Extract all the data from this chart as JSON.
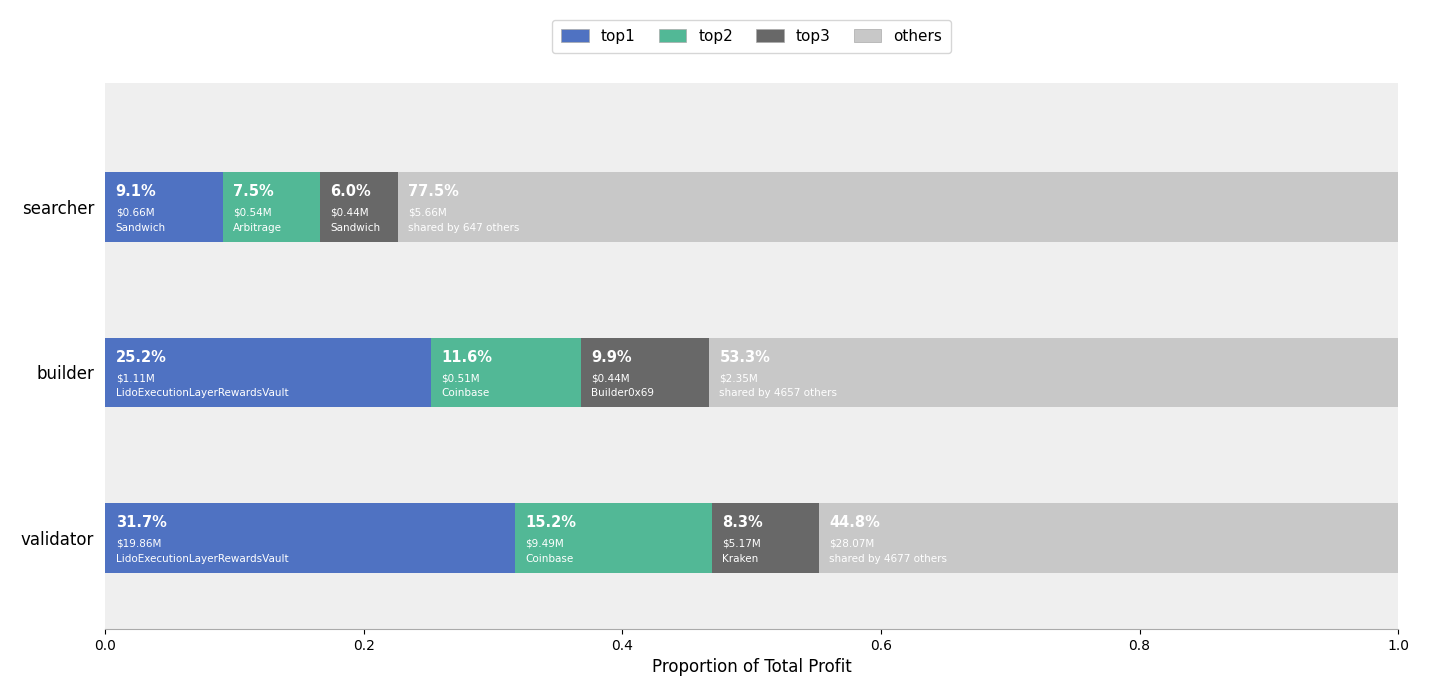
{
  "categories": [
    "searcher",
    "builder",
    "validator"
  ],
  "segments": [
    {
      "row": "searcher",
      "values": [
        0.091,
        0.075,
        0.06,
        0.775
      ],
      "colors": [
        "#4f72c2",
        "#52b896",
        "#686868",
        "#c8c8c8"
      ],
      "labels": [
        "9.1%",
        "7.5%",
        "6.0%",
        "77.5%"
      ],
      "line2": [
        "$0.66M",
        "$0.54M",
        "$0.44M",
        "$5.66M"
      ],
      "line3": [
        "Sandwich",
        "Arbitrage",
        "Sandwich",
        "shared by 647 others"
      ]
    },
    {
      "row": "builder",
      "values": [
        0.252,
        0.116,
        0.099,
        0.533
      ],
      "colors": [
        "#4f72c2",
        "#52b896",
        "#686868",
        "#c8c8c8"
      ],
      "labels": [
        "25.2%",
        "11.6%",
        "9.9%",
        "53.3%"
      ],
      "line2": [
        "$1.11M",
        "$0.51M",
        "$0.44M",
        "$2.35M"
      ],
      "line3": [
        "LidoExecutionLayerRewardsVault",
        "Coinbase",
        "Builder0x69",
        "shared by 4657 others"
      ]
    },
    {
      "row": "validator",
      "values": [
        0.317,
        0.152,
        0.083,
        0.448
      ],
      "colors": [
        "#4f72c2",
        "#52b896",
        "#686868",
        "#c8c8c8"
      ],
      "labels": [
        "31.7%",
        "15.2%",
        "8.3%",
        "44.8%"
      ],
      "line2": [
        "$19.86M",
        "$9.49M",
        "$5.17M",
        "$28.07M"
      ],
      "line3": [
        "LidoExecutionLayerRewardsVault",
        "Coinbase",
        "Kraken",
        "shared by 4677 others"
      ]
    }
  ],
  "legend_labels": [
    "top1",
    "top2",
    "top3",
    "others"
  ],
  "legend_colors": [
    "#4f72c2",
    "#52b896",
    "#686868",
    "#c8c8c8"
  ],
  "xlabel": "Proportion of Total Profit",
  "xlim": [
    0.0,
    1.0
  ],
  "bar_height": 0.42,
  "figure_facecolor": "#ffffff",
  "axes_facecolor": "#efefef"
}
